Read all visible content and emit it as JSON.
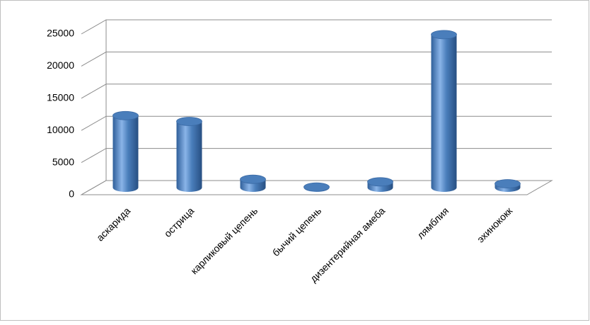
{
  "chart_data": {
    "type": "bar",
    "categories": [
      "аскарида",
      "острица",
      "карликовый цепень",
      "бычий цепень",
      "дизентерийная амеба",
      "лямблия",
      "эхинококк"
    ],
    "values": [
      11200,
      10300,
      1300,
      100,
      900,
      23800,
      600
    ],
    "color": "#4a7ebb",
    "ylim": [
      0,
      25000
    ],
    "yticks": [
      0,
      5000,
      10000,
      15000,
      20000,
      25000
    ],
    "grid": true
  }
}
